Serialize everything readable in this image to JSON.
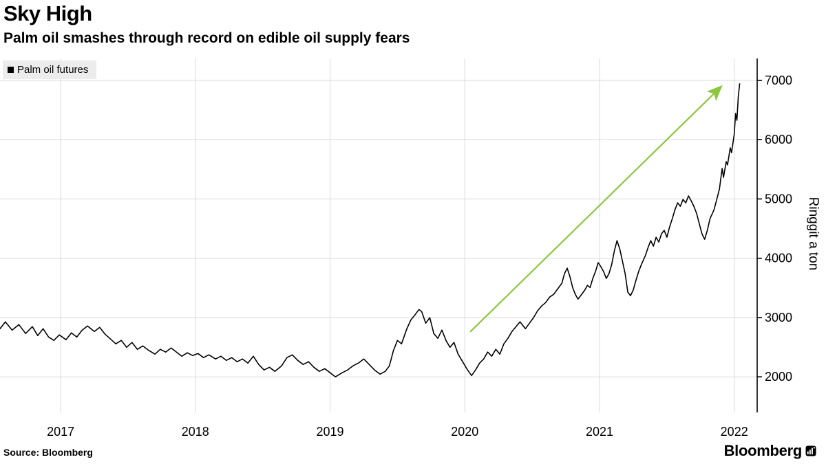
{
  "header": {
    "title": "Sky High",
    "subtitle": "Palm oil smashes through record on edible oil supply fears"
  },
  "legend": {
    "label": "Palm oil futures",
    "marker_color": "#000000"
  },
  "source": "Source: Bloomberg",
  "branding": {
    "logo_text": "Bloomberg"
  },
  "chart_data": {
    "type": "line",
    "title": "Sky High",
    "subtitle": "Palm oil smashes through record on edible oil supply fears",
    "xlabel": "",
    "ylabel": "Ringgit a ton",
    "x_ticks": [
      2017,
      2018,
      2019,
      2020,
      2021,
      2022
    ],
    "x_tick_labels": [
      "2017",
      "2018",
      "2019",
      "2020",
      "2021",
      "2022"
    ],
    "y_ticks": [
      2000,
      3000,
      4000,
      5000,
      6000,
      7000
    ],
    "y_tick_labels": [
      "2000",
      "3000",
      "4000",
      "5000",
      "6000",
      "7000"
    ],
    "x_range": [
      2016.55,
      2022.17
    ],
    "y_range": [
      1400,
      7370
    ],
    "grid": true,
    "grid_color": "#d9d9d9",
    "axis_color": "#000000",
    "legend_position": "top-left",
    "annotation_arrow": {
      "from_x": 2020.04,
      "from_y": 2760,
      "to_x": 2021.9,
      "to_y": 6890,
      "color": "#8dc63f"
    },
    "series": [
      {
        "name": "Palm oil futures",
        "color": "#000000",
        "points": [
          [
            2016.55,
            2812
          ],
          [
            2016.59,
            2928
          ],
          [
            2016.64,
            2789
          ],
          [
            2016.69,
            2882
          ],
          [
            2016.74,
            2731
          ],
          [
            2016.79,
            2847
          ],
          [
            2016.83,
            2696
          ],
          [
            2016.87,
            2812
          ],
          [
            2016.91,
            2673
          ],
          [
            2016.95,
            2615
          ],
          [
            2016.99,
            2708
          ],
          [
            2017.04,
            2626
          ],
          [
            2017.08,
            2742
          ],
          [
            2017.12,
            2673
          ],
          [
            2017.16,
            2789
          ],
          [
            2017.2,
            2858
          ],
          [
            2017.25,
            2766
          ],
          [
            2017.29,
            2835
          ],
          [
            2017.33,
            2719
          ],
          [
            2017.37,
            2638
          ],
          [
            2017.41,
            2557
          ],
          [
            2017.45,
            2615
          ],
          [
            2017.49,
            2499
          ],
          [
            2017.53,
            2580
          ],
          [
            2017.57,
            2464
          ],
          [
            2017.61,
            2522
          ],
          [
            2017.65,
            2452
          ],
          [
            2017.7,
            2383
          ],
          [
            2017.74,
            2464
          ],
          [
            2017.78,
            2418
          ],
          [
            2017.82,
            2487
          ],
          [
            2017.86,
            2418
          ],
          [
            2017.9,
            2348
          ],
          [
            2017.94,
            2406
          ],
          [
            2017.98,
            2360
          ],
          [
            2018.02,
            2394
          ],
          [
            2018.06,
            2325
          ],
          [
            2018.1,
            2371
          ],
          [
            2018.15,
            2302
          ],
          [
            2018.19,
            2348
          ],
          [
            2018.23,
            2278
          ],
          [
            2018.27,
            2325
          ],
          [
            2018.31,
            2255
          ],
          [
            2018.35,
            2302
          ],
          [
            2018.39,
            2232
          ],
          [
            2018.43,
            2348
          ],
          [
            2018.47,
            2209
          ],
          [
            2018.51,
            2116
          ],
          [
            2018.55,
            2162
          ],
          [
            2018.59,
            2093
          ],
          [
            2018.64,
            2186
          ],
          [
            2018.68,
            2325
          ],
          [
            2018.72,
            2371
          ],
          [
            2018.76,
            2278
          ],
          [
            2018.8,
            2209
          ],
          [
            2018.84,
            2255
          ],
          [
            2018.88,
            2162
          ],
          [
            2018.92,
            2093
          ],
          [
            2018.96,
            2139
          ],
          [
            2019.0,
            2070
          ],
          [
            2019.04,
            2000
          ],
          [
            2019.09,
            2070
          ],
          [
            2019.13,
            2116
          ],
          [
            2019.17,
            2186
          ],
          [
            2019.21,
            2232
          ],
          [
            2019.25,
            2302
          ],
          [
            2019.29,
            2209
          ],
          [
            2019.33,
            2116
          ],
          [
            2019.37,
            2046
          ],
          [
            2019.41,
            2093
          ],
          [
            2019.44,
            2186
          ],
          [
            2019.47,
            2441
          ],
          [
            2019.5,
            2615
          ],
          [
            2019.53,
            2557
          ],
          [
            2019.57,
            2812
          ],
          [
            2019.6,
            2963
          ],
          [
            2019.63,
            3044
          ],
          [
            2019.66,
            3137
          ],
          [
            2019.68,
            3102
          ],
          [
            2019.71,
            2905
          ],
          [
            2019.74,
            2998
          ],
          [
            2019.77,
            2731
          ],
          [
            2019.8,
            2650
          ],
          [
            2019.83,
            2789
          ],
          [
            2019.86,
            2615
          ],
          [
            2019.89,
            2499
          ],
          [
            2019.92,
            2580
          ],
          [
            2019.95,
            2383
          ],
          [
            2019.99,
            2232
          ],
          [
            2020.02,
            2116
          ],
          [
            2020.05,
            2023
          ],
          [
            2020.08,
            2116
          ],
          [
            2020.11,
            2232
          ],
          [
            2020.14,
            2302
          ],
          [
            2020.17,
            2418
          ],
          [
            2020.2,
            2348
          ],
          [
            2020.23,
            2464
          ],
          [
            2020.26,
            2383
          ],
          [
            2020.29,
            2557
          ],
          [
            2020.32,
            2650
          ],
          [
            2020.35,
            2766
          ],
          [
            2020.38,
            2847
          ],
          [
            2020.41,
            2928
          ],
          [
            2020.45,
            2812
          ],
          [
            2020.48,
            2905
          ],
          [
            2020.51,
            2998
          ],
          [
            2020.54,
            3114
          ],
          [
            2020.57,
            3195
          ],
          [
            2020.6,
            3253
          ],
          [
            2020.63,
            3346
          ],
          [
            2020.66,
            3392
          ],
          [
            2020.69,
            3485
          ],
          [
            2020.72,
            3578
          ],
          [
            2020.74,
            3740
          ],
          [
            2020.76,
            3833
          ],
          [
            2020.78,
            3694
          ],
          [
            2020.8,
            3508
          ],
          [
            2020.82,
            3392
          ],
          [
            2020.84,
            3311
          ],
          [
            2020.86,
            3369
          ],
          [
            2020.89,
            3462
          ],
          [
            2020.91,
            3543
          ],
          [
            2020.93,
            3508
          ],
          [
            2020.95,
            3659
          ],
          [
            2020.97,
            3775
          ],
          [
            2020.99,
            3926
          ],
          [
            2021.01,
            3856
          ],
          [
            2021.03,
            3775
          ],
          [
            2021.05,
            3659
          ],
          [
            2021.07,
            3740
          ],
          [
            2021.09,
            3891
          ],
          [
            2021.11,
            4123
          ],
          [
            2021.13,
            4297
          ],
          [
            2021.15,
            4158
          ],
          [
            2021.17,
            3949
          ],
          [
            2021.19,
            3740
          ],
          [
            2021.21,
            3427
          ],
          [
            2021.23,
            3369
          ],
          [
            2021.25,
            3462
          ],
          [
            2021.27,
            3624
          ],
          [
            2021.29,
            3775
          ],
          [
            2021.31,
            3891
          ],
          [
            2021.34,
            4042
          ],
          [
            2021.36,
            4181
          ],
          [
            2021.38,
            4297
          ],
          [
            2021.4,
            4204
          ],
          [
            2021.42,
            4355
          ],
          [
            2021.44,
            4274
          ],
          [
            2021.46,
            4413
          ],
          [
            2021.48,
            4471
          ],
          [
            2021.5,
            4355
          ],
          [
            2021.52,
            4529
          ],
          [
            2021.54,
            4668
          ],
          [
            2021.56,
            4819
          ],
          [
            2021.58,
            4935
          ],
          [
            2021.6,
            4877
          ],
          [
            2021.62,
            4993
          ],
          [
            2021.64,
            4935
          ],
          [
            2021.66,
            5051
          ],
          [
            2021.68,
            4970
          ],
          [
            2021.7,
            4877
          ],
          [
            2021.72,
            4761
          ],
          [
            2021.74,
            4587
          ],
          [
            2021.76,
            4413
          ],
          [
            2021.78,
            4320
          ],
          [
            2021.8,
            4471
          ],
          [
            2021.82,
            4668
          ],
          [
            2021.85,
            4819
          ],
          [
            2021.87,
            4993
          ],
          [
            2021.89,
            5167
          ],
          [
            2021.91,
            5515
          ],
          [
            2021.92,
            5364
          ],
          [
            2021.94,
            5631
          ],
          [
            2021.95,
            5573
          ],
          [
            2021.97,
            5863
          ],
          [
            2021.98,
            5781
          ],
          [
            2022.0,
            6095
          ],
          [
            2022.01,
            6443
          ],
          [
            2022.02,
            6327
          ],
          [
            2022.03,
            6733
          ],
          [
            2022.04,
            6942
          ]
        ]
      }
    ]
  }
}
